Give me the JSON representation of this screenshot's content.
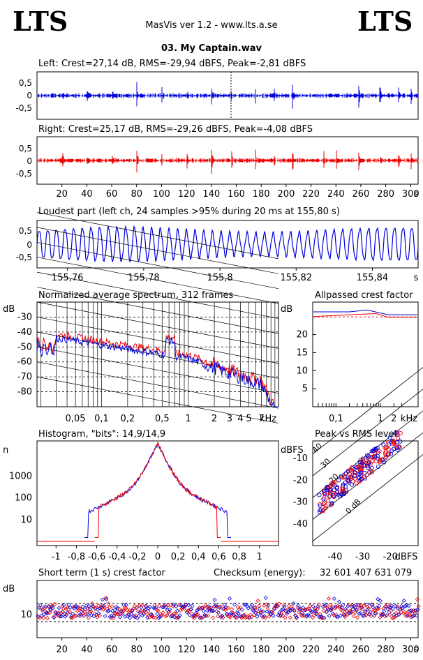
{
  "header": {
    "logo_left": "LTS",
    "logo_right": "LTS",
    "app_title": "MasVis ver 1.2 - www.lts.a.se",
    "file_name": "03. My Captain.wav"
  },
  "colors": {
    "left": "#0000dd",
    "right": "#ee0000",
    "axis": "#000000",
    "grid": "#000000"
  },
  "chart_data": [
    {
      "type": "line",
      "title": "Left: Crest=27,14 dB, RMS=-29,94 dBFS, Peak=-2,81 dBFS",
      "y_ticks": [
        "0,5",
        "0",
        "-0,5"
      ],
      "ylim": [
        -0.75,
        0.75
      ],
      "xlim": [
        0,
        306
      ],
      "series": [
        {
          "color": "#0000dd"
        }
      ],
      "peak_marker_x": 155.8
    },
    {
      "type": "line",
      "title": "Right: Crest=25,17 dB, RMS=-29,26 dBFS, Peak=-4,08 dBFS",
      "y_ticks": [
        "0,5",
        "0",
        "-0,5"
      ],
      "ylim": [
        -0.75,
        0.75
      ],
      "xlim": [
        0,
        306
      ],
      "x_ticks": [
        "20",
        "40",
        "60",
        "80",
        "100",
        "120",
        "140",
        "160",
        "180",
        "200",
        "220",
        "240",
        "260",
        "280",
        "300"
      ],
      "x_unit": "s",
      "series": [
        {
          "color": "#ee0000"
        }
      ]
    },
    {
      "type": "line",
      "title": "Loudest part (left  ch, 24 samples >95% during 20 ms at 155,80 s)",
      "y_ticks": [
        "0,5",
        "0",
        "-0,5"
      ],
      "ylim": [
        -0.75,
        0.75
      ],
      "xlim": [
        155.752,
        155.852
      ],
      "x_ticks": [
        "155,76",
        "155,78",
        "155,8",
        "155,82",
        "155,84"
      ],
      "x_unit": "s"
    },
    {
      "type": "line",
      "title": "Normalized average spectrum, 312 frames",
      "y_unit": "dB",
      "y_ticks": [
        "-30",
        "-40",
        "-50",
        "-60",
        "-70",
        "-80"
      ],
      "x_ticks": [
        "0,05",
        "0,1",
        "0,2",
        "0,5",
        "1",
        "2",
        "3",
        "4",
        "5",
        "7"
      ],
      "x_unit": "kHz",
      "x_scale": "log"
    },
    {
      "type": "line",
      "title": "Allpassed crest factor",
      "y_unit": "dB",
      "y_ticks": [
        "20",
        "15",
        "10",
        "5"
      ],
      "x_ticks": [
        "0,1",
        "1",
        "2"
      ],
      "x_unit": "kHz",
      "x_scale": "log"
    },
    {
      "type": "line",
      "title": "Histogram, \"bits\": 14,9/14,9",
      "y_unit": "n",
      "y_ticks": [
        "1000",
        "100",
        "10"
      ],
      "y_scale": "log",
      "x_ticks": [
        "-1",
        "-0,8",
        "-0,6",
        "-0,4",
        "-0,2",
        "0",
        "0,2",
        "0,4",
        "0,6",
        "0,8",
        "1"
      ]
    },
    {
      "type": "scatter",
      "title": "Peak vs RMS level",
      "y_unit": "dBFS",
      "y_ticks": [
        "-10",
        "-20",
        "-30",
        "-40"
      ],
      "x_ticks": [
        "-40",
        "-30",
        "-20"
      ],
      "x_unit": "dBFS",
      "line_labels": [
        "40",
        "30",
        "20",
        "10",
        "0 dB"
      ]
    },
    {
      "type": "scatter",
      "title": "Short term (1 s) crest factor",
      "checksum_label": "Checksum (energy):",
      "checksum_value": "32 601 407 631 079",
      "y_unit": "dB",
      "y_ticks": [
        "10"
      ],
      "x_ticks": [
        "20",
        "40",
        "60",
        "80",
        "100",
        "120",
        "140",
        "160",
        "180",
        "200",
        "220",
        "240",
        "260",
        "280",
        "300"
      ],
      "x_unit": "s"
    }
  ]
}
